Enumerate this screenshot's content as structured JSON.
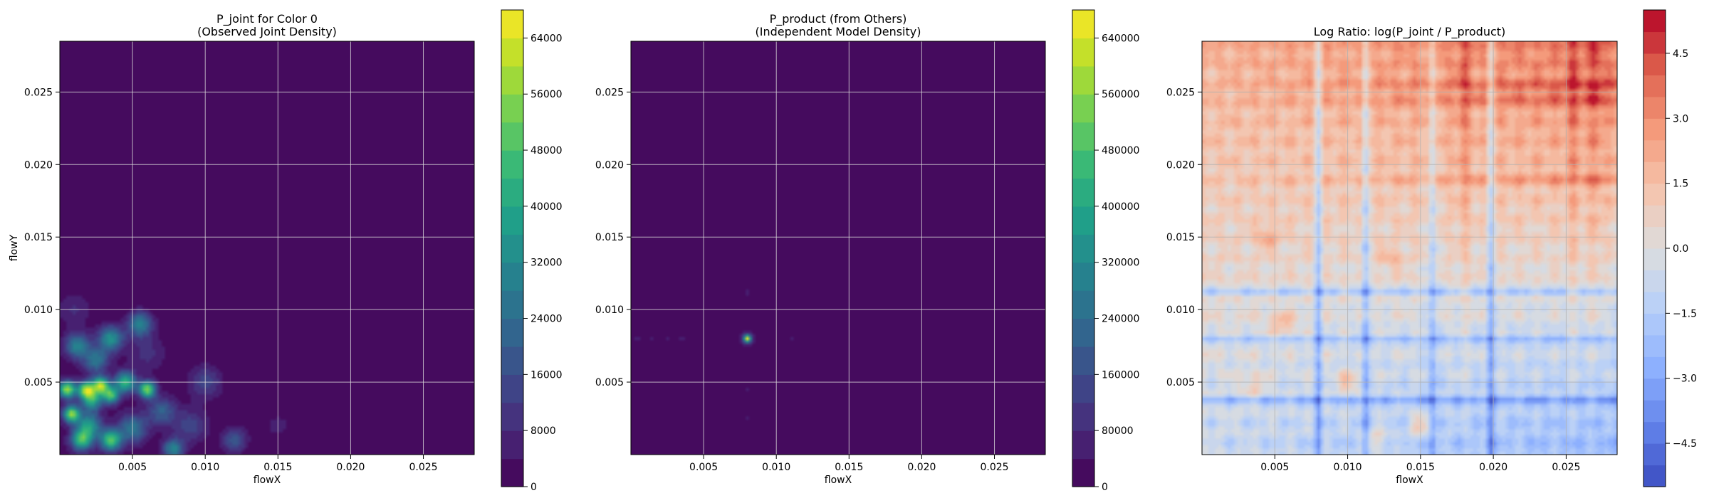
{
  "chart_data": [
    {
      "type": "heatmap",
      "title": "P_joint for Color 0\n(Observed Joint Density)",
      "xlabel": "flowX",
      "ylabel": "flowY",
      "xlim": [
        0.0,
        0.0285
      ],
      "ylim": [
        0.0,
        0.0285
      ],
      "xticks": [
        0.005,
        0.01,
        0.015,
        0.02,
        0.025
      ],
      "xtick_labels": [
        "0.005",
        "0.010",
        "0.015",
        "0.020",
        "0.025"
      ],
      "yticks": [
        0.005,
        0.01,
        0.015,
        0.02,
        0.025
      ],
      "ytick_labels": [
        "0.005",
        "0.010",
        "0.015",
        "0.020",
        "0.025"
      ],
      "grid": true,
      "colormap": "viridis",
      "colorbar": {
        "min": 0,
        "max": 68000,
        "levels": 17,
        "ticks": [
          0,
          8000,
          16000,
          24000,
          32000,
          40000,
          48000,
          56000,
          64000
        ],
        "tick_labels": [
          "0",
          "8000",
          "16000",
          "24000",
          "32000",
          "40000",
          "48000",
          "56000",
          "64000"
        ]
      },
      "hotspots": [
        {
          "x": 0.0005,
          "y": 0.0045,
          "v": 58000,
          "s": 0.0004
        },
        {
          "x": 0.0008,
          "y": 0.0028,
          "v": 55000,
          "s": 0.0004
        },
        {
          "x": 0.0015,
          "y": 0.001,
          "v": 44000,
          "s": 0.0005
        },
        {
          "x": 0.0018,
          "y": 0.0045,
          "v": 52000,
          "s": 0.0004
        },
        {
          "x": 0.0022,
          "y": 0.0038,
          "v": 40000,
          "s": 0.0005
        },
        {
          "x": 0.0028,
          "y": 0.0048,
          "v": 56000,
          "s": 0.0004
        },
        {
          "x": 0.0035,
          "y": 0.0041,
          "v": 46000,
          "s": 0.0004
        },
        {
          "x": 0.0035,
          "y": 0.001,
          "v": 48000,
          "s": 0.0005
        },
        {
          "x": 0.0045,
          "y": 0.005,
          "v": 44000,
          "s": 0.0005
        },
        {
          "x": 0.006,
          "y": 0.0045,
          "v": 54000,
          "s": 0.0004
        },
        {
          "x": 0.0055,
          "y": 0.009,
          "v": 30000,
          "s": 0.0006
        },
        {
          "x": 0.0012,
          "y": 0.0075,
          "v": 30000,
          "s": 0.0006
        },
        {
          "x": 0.0035,
          "y": 0.008,
          "v": 34000,
          "s": 0.0006
        },
        {
          "x": 0.0025,
          "y": 0.0065,
          "v": 26000,
          "s": 0.0006
        },
        {
          "x": 0.002,
          "y": 0.002,
          "v": 36000,
          "s": 0.0006
        },
        {
          "x": 0.005,
          "y": 0.0018,
          "v": 26000,
          "s": 0.0007
        },
        {
          "x": 0.007,
          "y": 0.003,
          "v": 20000,
          "s": 0.0007
        },
        {
          "x": 0.0078,
          "y": 0.0004,
          "v": 30000,
          "s": 0.0005
        },
        {
          "x": 0.01,
          "y": 0.005,
          "v": 14000,
          "s": 0.0008
        },
        {
          "x": 0.012,
          "y": 0.001,
          "v": 18000,
          "s": 0.0006
        },
        {
          "x": 0.015,
          "y": 0.002,
          "v": 5000,
          "s": 0.0008
        },
        {
          "x": 0.001,
          "y": 0.01,
          "v": 8000,
          "s": 0.0008
        },
        {
          "x": 0.006,
          "y": 0.007,
          "v": 9000,
          "s": 0.0009
        },
        {
          "x": 0.009,
          "y": 0.002,
          "v": 14000,
          "s": 0.0008
        }
      ]
    },
    {
      "type": "heatmap",
      "title": "P_product (from Others)\n(Independent Model Density)",
      "xlabel": "flowX",
      "ylabel": "",
      "xlim": [
        0.0,
        0.0285
      ],
      "ylim": [
        0.0,
        0.0285
      ],
      "xticks": [
        0.005,
        0.01,
        0.015,
        0.02,
        0.025
      ],
      "xtick_labels": [
        "0.005",
        "0.010",
        "0.015",
        "0.020",
        "0.025"
      ],
      "yticks": [
        0.005,
        0.01,
        0.015,
        0.02,
        0.025
      ],
      "ytick_labels": [
        "0.005",
        "0.010",
        "0.015",
        "0.020",
        "0.025"
      ],
      "grid": true,
      "colormap": "viridis",
      "colorbar": {
        "min": 0,
        "max": 680000,
        "levels": 17,
        "ticks": [
          0,
          80000,
          160000,
          240000,
          320000,
          400000,
          480000,
          560000,
          640000
        ],
        "tick_labels": [
          "0",
          "80000",
          "160000",
          "240000",
          "320000",
          "400000",
          "480000",
          "560000",
          "640000"
        ]
      },
      "hotspots": [
        {
          "x": 0.008,
          "y": 0.008,
          "v": 560000,
          "s": 0.00018
        },
        {
          "x": 0.008,
          "y": 0.008,
          "v": 90000,
          "s": 0.0004
        },
        {
          "x": 0.0005,
          "y": 0.008,
          "v": 50000,
          "s": 0.0003
        },
        {
          "x": 0.0015,
          "y": 0.008,
          "v": 42000,
          "s": 0.0003
        },
        {
          "x": 0.0025,
          "y": 0.008,
          "v": 48000,
          "s": 0.0003
        },
        {
          "x": 0.0035,
          "y": 0.008,
          "v": 44000,
          "s": 0.0003
        },
        {
          "x": 0.005,
          "y": 0.008,
          "v": 40000,
          "s": 0.0003
        },
        {
          "x": 0.011,
          "y": 0.008,
          "v": 42000,
          "s": 0.0003
        },
        {
          "x": 0.008,
          "y": 0.0112,
          "v": 46000,
          "s": 0.0003
        },
        {
          "x": 0.008,
          "y": 0.006,
          "v": 36000,
          "s": 0.0003
        },
        {
          "x": 0.008,
          "y": 0.0045,
          "v": 40000,
          "s": 0.0003
        },
        {
          "x": 0.008,
          "y": 0.0035,
          "v": 38000,
          "s": 0.0003
        },
        {
          "x": 0.008,
          "y": 0.0025,
          "v": 42000,
          "s": 0.0003
        },
        {
          "x": 0.008,
          "y": 0.0012,
          "v": 36000,
          "s": 0.0003
        },
        {
          "x": 0.008,
          "y": 0.0003,
          "v": 30000,
          "s": 0.0003
        },
        {
          "x": 0.0003,
          "y": 0.0038,
          "v": 26000,
          "s": 0.0003
        },
        {
          "x": 0.0013,
          "y": 0.0038,
          "v": 24000,
          "s": 0.0003
        },
        {
          "x": 0.0022,
          "y": 0.0038,
          "v": 24000,
          "s": 0.0003
        },
        {
          "x": 0.0038,
          "y": 0.0038,
          "v": 22000,
          "s": 0.0003
        },
        {
          "x": 0.0003,
          "y": 0.0022,
          "v": 22000,
          "s": 0.0003
        },
        {
          "x": 0.0013,
          "y": 0.0022,
          "v": 20000,
          "s": 0.0003
        },
        {
          "x": 0.0022,
          "y": 0.0022,
          "v": 22000,
          "s": 0.0003
        },
        {
          "x": 0.0038,
          "y": 0.0022,
          "v": 20000,
          "s": 0.0003
        },
        {
          "x": 0.0003,
          "y": 0.0008,
          "v": 22000,
          "s": 0.0003
        },
        {
          "x": 0.0013,
          "y": 0.0008,
          "v": 20000,
          "s": 0.0003
        },
        {
          "x": 0.0022,
          "y": 0.0008,
          "v": 22000,
          "s": 0.0003
        },
        {
          "x": 0.0038,
          "y": 0.0008,
          "v": 20000,
          "s": 0.0003
        }
      ]
    },
    {
      "type": "heatmap",
      "title": "Log Ratio: log(P_joint / P_product)",
      "xlabel": "flowX",
      "ylabel": "",
      "xlim": [
        0.0,
        0.0285
      ],
      "ylim": [
        0.0,
        0.0285
      ],
      "xticks": [
        0.005,
        0.01,
        0.015,
        0.02,
        0.025
      ],
      "xtick_labels": [
        "0.005",
        "0.010",
        "0.015",
        "0.020",
        "0.025"
      ],
      "yticks": [
        0.005,
        0.01,
        0.015,
        0.02,
        0.025
      ],
      "ytick_labels": [
        "0.005",
        "0.010",
        "0.015",
        "0.020",
        "0.025"
      ],
      "grid": true,
      "colormap": "coolwarm",
      "colorbar": {
        "min": -5.5,
        "max": 5.5,
        "levels": 22,
        "ticks": [
          -4.5,
          -3.0,
          -1.5,
          0.0,
          1.5,
          3.0,
          4.5
        ],
        "tick_labels": [
          "−4.5",
          "−3.0",
          "−1.5",
          "0.0",
          "1.5",
          "3.0",
          "4.5"
        ]
      },
      "blue_lines_x": [
        0.008,
        0.0112,
        0.0158,
        0.0198
      ],
      "blue_lines_y": [
        0.008,
        0.0112,
        0.0038
      ],
      "red_lines_x": [
        0.018,
        0.0255,
        0.027
      ],
      "red_lines_y": [
        0.0255,
        0.0245,
        0.019
      ],
      "red_spots": [
        {
          "x": 0.0035,
          "y": 0.0048,
          "v": 1.5
        },
        {
          "x": 0.0055,
          "y": 0.009,
          "v": 1.8
        },
        {
          "x": 0.01,
          "y": 0.005,
          "v": 2.0
        },
        {
          "x": 0.012,
          "y": 0.001,
          "v": 1.8
        },
        {
          "x": 0.015,
          "y": 0.002,
          "v": 2.2
        },
        {
          "x": 0.0045,
          "y": 0.015,
          "v": 1.5
        },
        {
          "x": 0.013,
          "y": 0.0135,
          "v": 1.2
        }
      ]
    }
  ]
}
